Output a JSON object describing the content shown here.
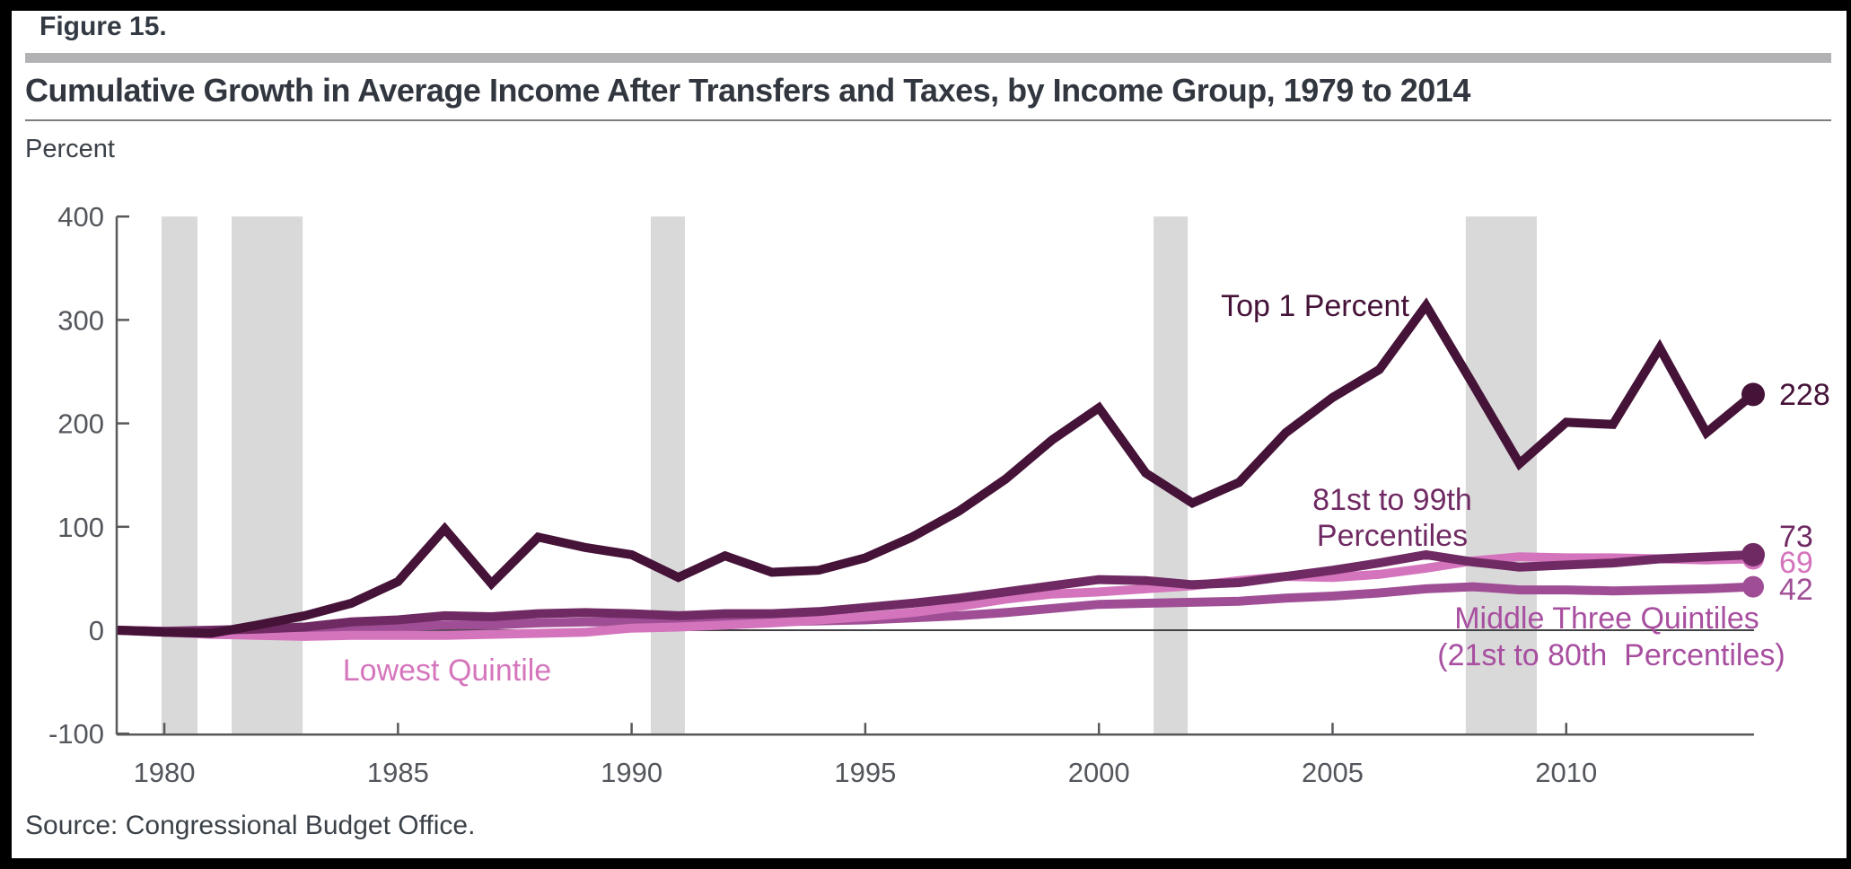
{
  "figure_label": "Figure 15.",
  "title": "Cumulative Growth in Average Income After Transfers and Taxes, by Income Group, 1979 to 2014",
  "unit_label": "Percent",
  "source": "Source: Congressional Budget Office.",
  "colors": {
    "page_border": "#000000",
    "header_band": "#b2b2b5",
    "title_text": "#31363f",
    "axis": "#58595b",
    "tick_label": "#53565c",
    "zero_line": "#414042",
    "recession_band": "#d9d9d9",
    "top_1_percent": "#451238",
    "p81_99": "#702a63",
    "lowest_quintile": "#d474bc",
    "middle_three": "#9f4e95",
    "middle_three_label": "#a84fa0",
    "lowest_label": "#d576bd"
  },
  "chart_data": {
    "type": "line",
    "title": "Cumulative Growth in Average Income After Transfers and Taxes, by Income Group, 1979 to 2014",
    "ylabel": "Percent",
    "xlim": [
      1979,
      2014
    ],
    "ylim": [
      -100,
      400
    ],
    "grid": false,
    "legend_position": "inline-annotations",
    "x": [
      1979,
      1980,
      1981,
      1982,
      1983,
      1984,
      1985,
      1986,
      1987,
      1988,
      1989,
      1990,
      1991,
      1992,
      1993,
      1994,
      1995,
      1996,
      1997,
      1998,
      1999,
      2000,
      2001,
      2002,
      2003,
      2004,
      2005,
      2006,
      2007,
      2008,
      2009,
      2010,
      2011,
      2012,
      2013,
      2014
    ],
    "xticks": [
      1980,
      1985,
      1990,
      1995,
      2000,
      2005,
      2010
    ],
    "yticks": [
      400,
      300,
      200,
      100,
      0,
      -100
    ],
    "recession_bands": [
      [
        1979.94,
        1980.71
      ],
      [
        1981.44,
        1982.96
      ],
      [
        1990.41,
        1991.14
      ],
      [
        2001.17,
        2001.9
      ],
      [
        2007.85,
        2009.37
      ]
    ],
    "series": [
      {
        "name": "Top 1 Percent",
        "color": "#451238",
        "end_label": "228",
        "values": [
          0,
          -2,
          -3,
          5,
          14,
          26,
          47,
          98,
          45,
          90,
          80,
          73,
          51,
          72,
          56,
          58,
          70,
          90,
          115,
          146,
          184,
          215,
          152,
          123,
          143,
          191,
          225,
          252,
          314,
          238,
          161,
          201,
          199,
          273,
          191,
          228
        ]
      },
      {
        "name": "81st to 99th Percentiles",
        "color": "#702a63",
        "end_label": "73",
        "values": [
          0,
          -1,
          0,
          1,
          3,
          8,
          10,
          14,
          13,
          16,
          17,
          16,
          14,
          16,
          16,
          18,
          22,
          26,
          31,
          37,
          43,
          49,
          48,
          44,
          46,
          52,
          58,
          65,
          73,
          66,
          61,
          63,
          65,
          69,
          71,
          73
        ]
      },
      {
        "name": "Lowest Quintile",
        "color": "#d474bc",
        "end_label": "69",
        "values": [
          0,
          -2,
          -4,
          -5,
          -6,
          -5,
          -5,
          -5,
          -4,
          -3,
          -2,
          2,
          3,
          5,
          7,
          10,
          13,
          17,
          23,
          30,
          35,
          37,
          40,
          43,
          48,
          52,
          51,
          54,
          60,
          67,
          71,
          70,
          70,
          69,
          68,
          69
        ]
      },
      {
        "name": "Middle Three Quintiles (21st to 80th Percentiles)",
        "color": "#9f4e95",
        "end_label": "42",
        "values": [
          0,
          -1,
          -2,
          -2,
          -1,
          2,
          3,
          5,
          5,
          7,
          8,
          8,
          7,
          8,
          8,
          9,
          10,
          12,
          14,
          17,
          21,
          25,
          26,
          27,
          28,
          31,
          33,
          36,
          40,
          42,
          39,
          39,
          38,
          39,
          40,
          42
        ]
      }
    ],
    "annotations": {
      "top_1": "Top 1 Percent",
      "p81_99_line1": "81st to 99th",
      "p81_99_line2": "Percentiles",
      "lowest": "Lowest Quintile",
      "middle_line1": "Middle Three Quintiles",
      "middle_line2": "(21st to 80th  Percentiles)"
    }
  }
}
